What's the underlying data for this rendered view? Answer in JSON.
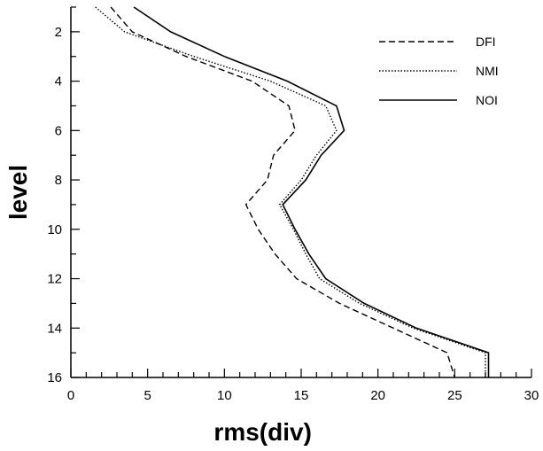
{
  "chart_data": {
    "type": "line",
    "title": "",
    "xlabel": "rms(div)",
    "ylabel": "level",
    "xlim": [
      0,
      30
    ],
    "ylim": [
      16,
      1
    ],
    "y_axis_inverted": true,
    "x_ticks": [
      0,
      5,
      10,
      15,
      20,
      25,
      30
    ],
    "y_ticks": [
      2,
      4,
      6,
      8,
      10,
      12,
      14,
      16
    ],
    "grid": false,
    "legend_position": "top-right",
    "y": [
      1,
      2,
      3,
      4,
      5,
      6,
      7,
      8,
      9,
      10,
      11,
      12,
      13,
      14,
      15,
      16
    ],
    "series": [
      {
        "name": "DFI",
        "style": "dashed",
        "color": "#000000",
        "x": [
          2.6,
          4.0,
          7.5,
          11.8,
          14.2,
          14.6,
          13.2,
          12.8,
          11.4,
          12.2,
          13.3,
          14.7,
          17.5,
          21.0,
          24.5,
          25.0
        ]
      },
      {
        "name": "NMI",
        "style": "dotted",
        "color": "#000000",
        "x": [
          1.6,
          3.5,
          8.0,
          13.0,
          16.6,
          17.3,
          16.0,
          15.0,
          13.6,
          14.5,
          15.3,
          16.2,
          18.8,
          22.3,
          27.0,
          27.0
        ]
      },
      {
        "name": "NOI",
        "style": "solid",
        "color": "#000000",
        "x": [
          4.1,
          6.5,
          10.0,
          14.1,
          17.3,
          17.8,
          16.3,
          15.3,
          13.8,
          14.6,
          15.5,
          16.6,
          19.1,
          22.5,
          27.2,
          27.2
        ]
      }
    ]
  }
}
